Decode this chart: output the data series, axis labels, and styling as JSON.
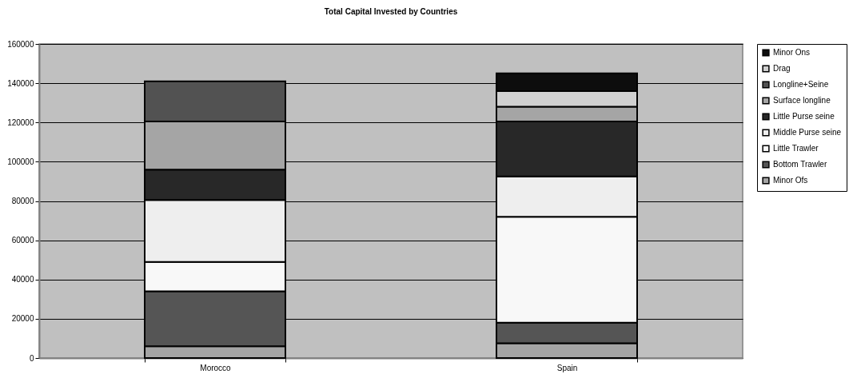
{
  "chart_data": {
    "type": "bar",
    "title": "Total Capital Invested by Countries",
    "categories": [
      "Morocco",
      "Spain"
    ],
    "stacked": true,
    "series": [
      {
        "name": "Minor Ofs",
        "color": "#a4a4a4",
        "values": [
          6000,
          7500
        ]
      },
      {
        "name": "Bottom Trawler",
        "color": "#555555",
        "values": [
          28000,
          10500
        ]
      },
      {
        "name": "Little Trawler",
        "color": "#f8f8f8",
        "values": [
          15000,
          54000
        ]
      },
      {
        "name": "Middle Purse seine",
        "color": "#eeeeee",
        "values": [
          31500,
          20500
        ]
      },
      {
        "name": "Little Purse seine",
        "color": "#282828",
        "values": [
          15500,
          28000
        ]
      },
      {
        "name": "Surface longline",
        "color": "#a5a5a5",
        "values": [
          24500,
          7500
        ]
      },
      {
        "name": "Longline+Seine",
        "color": "#525252",
        "values": [
          20500,
          0
        ]
      },
      {
        "name": "Drag",
        "color": "#d0d0d0",
        "values": [
          0,
          8000
        ]
      },
      {
        "name": "Minor Ons",
        "color": "#0d0d0d",
        "values": [
          0,
          9000
        ]
      }
    ],
    "ylim": [
      0,
      160000
    ],
    "yticks": [
      0,
      20000,
      40000,
      60000,
      80000,
      100000,
      120000,
      140000,
      160000
    ],
    "grid": "y",
    "legend": "right"
  }
}
